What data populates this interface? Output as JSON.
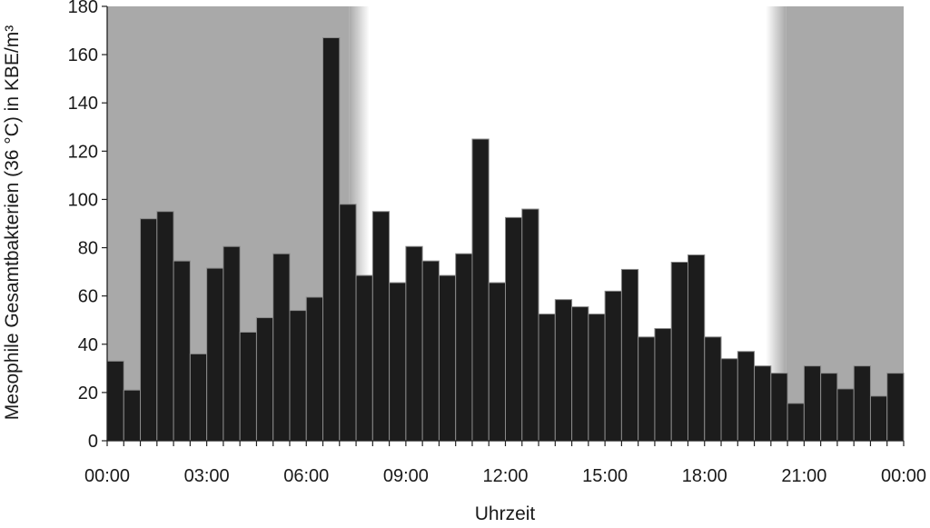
{
  "chart_data": {
    "type": "bar",
    "title": "",
    "xlabel": "Uhrzeit",
    "ylabel": "Mesophile Gesamtbakterien (36 °C) in KBE/m³",
    "ylim": [
      0,
      180
    ],
    "yticks": [
      0,
      20,
      40,
      60,
      80,
      100,
      120,
      140,
      160,
      180
    ],
    "xlim_hours": [
      0,
      24
    ],
    "xtick_labels": [
      "00:00",
      "03:00",
      "06:00",
      "09:00",
      "12:00",
      "15:00",
      "18:00",
      "21:00",
      "00:00"
    ],
    "bin_hours": 0.5,
    "grid": false,
    "night_shading": [
      {
        "from_hour": 0,
        "fade_start_hour": 7.3,
        "fade_end_hour": 7.9
      },
      {
        "fade_start_hour": 19.85,
        "fade_end_hour": 20.45,
        "to_hour": 24
      }
    ],
    "colors": {
      "bar": "#1c1c1c",
      "bar_edge": "#8a8a8a",
      "night": "#a9a9a9",
      "day": "#ffffff"
    },
    "values": [
      33,
      21,
      92,
      95,
      74.5,
      36,
      71.5,
      80.5,
      45,
      51,
      77.5,
      54,
      59.5,
      167,
      98,
      68.5,
      95,
      65.5,
      80.5,
      74.5,
      68.5,
      77.5,
      125,
      65.5,
      92.5,
      96,
      52.5,
      58.5,
      55.5,
      52.5,
      62,
      71,
      43,
      46.5,
      74,
      77,
      43,
      34,
      37,
      31,
      28,
      15.5,
      31,
      28,
      21.5,
      31,
      18.5,
      28
    ]
  }
}
